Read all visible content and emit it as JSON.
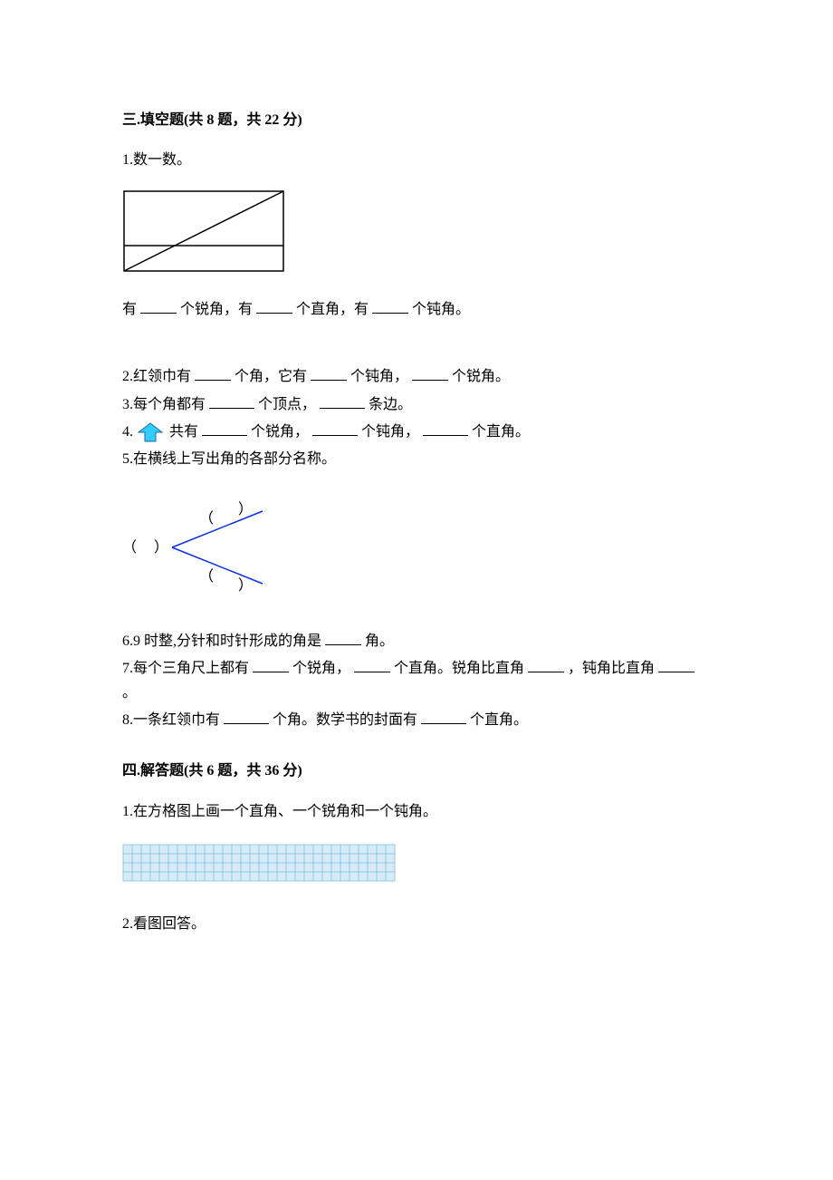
{
  "section3": {
    "title": "三.填空题(共 8 题，共 22 分)",
    "q1": {
      "stem": "1.数一数。",
      "fig": {
        "width": 180,
        "height": 92,
        "stroke": "#000000",
        "stroke_width": 1.5,
        "bg": "#ffffff"
      },
      "tail_parts": [
        "有",
        "个锐角，有",
        "个直角，有",
        "个钝角。"
      ]
    },
    "q2": {
      "parts": [
        "2.红领巾有",
        "个角，它有",
        "个钝角，",
        "个锐角。"
      ]
    },
    "q3": {
      "parts": [
        "3.每个角都有",
        "个顶点，",
        "条边。"
      ]
    },
    "q4": {
      "prefix": "4.",
      "parts": [
        "共有",
        "个锐角，",
        "个钝角，",
        "个直角。"
      ],
      "icon": {
        "fill": "#33ccff",
        "stroke": "#1a6aa0",
        "stroke_width": 1
      }
    },
    "q5": {
      "stem": "5.在横线上写出角的各部分名称。",
      "fig": {
        "stroke": "#0a2ee6",
        "stroke_width": 1.5,
        "text_color": "#000000"
      }
    },
    "q6": {
      "parts": [
        "6.9 时整,分针和时针形成的角是",
        "角。"
      ]
    },
    "q7": {
      "parts": [
        "7.每个三角尺上都有",
        "个锐角，",
        "个直角。锐角比直角",
        "，钝角比直角",
        "。"
      ]
    },
    "q8": {
      "parts": [
        "8.一条红领巾有",
        "个角。数学书的封面有",
        "个直角。"
      ]
    }
  },
  "section4": {
    "title": "四.解答题(共 6 题，共 36 分)",
    "q1": {
      "stem": "1.在方格图上画一个直角、一个锐角和一个钝角。",
      "grid": {
        "cols": 30,
        "rows": 4,
        "cell": 10,
        "line_color": "#8fc7e8",
        "fill": "#d8ecf7"
      }
    },
    "q2": {
      "stem": "2.看图回答。"
    }
  }
}
